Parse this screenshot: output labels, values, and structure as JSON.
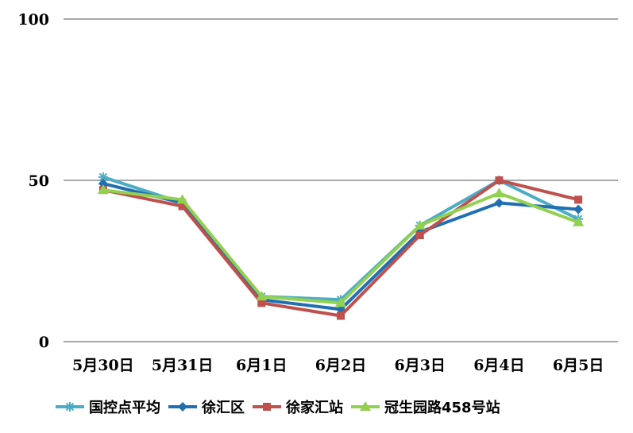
{
  "chart_data": {
    "type": "line",
    "categories": [
      "5月30日",
      "5月31日",
      "6月1日",
      "6月2日",
      "6月3日",
      "6月4日",
      "6月5日"
    ],
    "ylim": [
      0,
      100
    ],
    "yticks": [
      "0",
      "50",
      "100"
    ],
    "grid": true,
    "legend_position": "bottom",
    "series": [
      {
        "name": "国控点平均",
        "color": "#4bacc6",
        "marker": "star",
        "values": [
          51,
          43,
          14,
          13,
          36,
          50,
          38
        ]
      },
      {
        "name": "徐汇区",
        "color": "#1f6fb2",
        "marker": "diamond",
        "values": [
          49,
          43,
          13,
          10,
          34,
          43,
          41
        ]
      },
      {
        "name": "徐家汇站",
        "color": "#c0504d",
        "marker": "square",
        "values": [
          47,
          42,
          12,
          8,
          33,
          50,
          44
        ]
      },
      {
        "name": "冠生园路458号站",
        "color": "#92d050",
        "marker": "triangle",
        "values": [
          47,
          44,
          14,
          12,
          36,
          46,
          37
        ]
      }
    ]
  }
}
